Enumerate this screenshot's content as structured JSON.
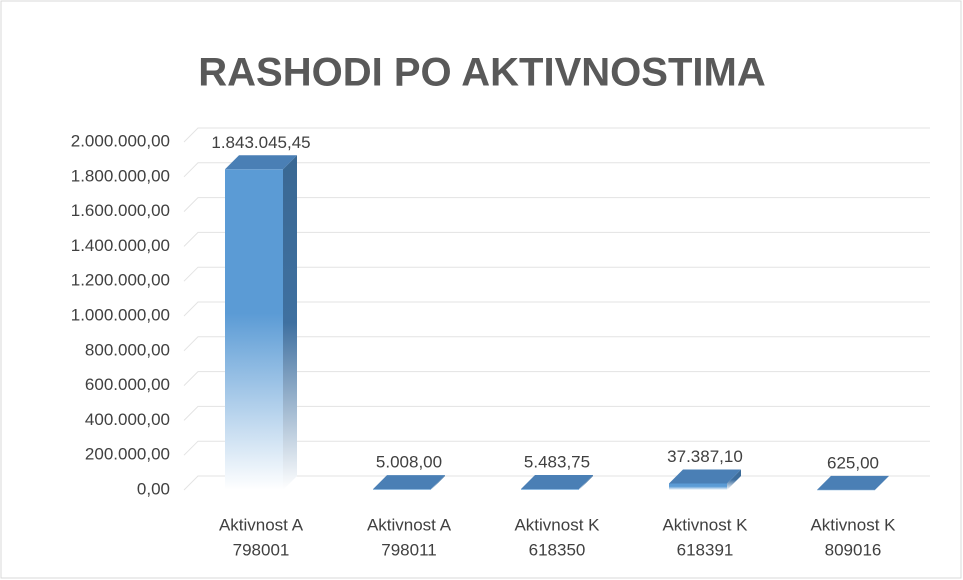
{
  "chart_data": {
    "type": "bar3d",
    "title": "RASHODI PO AKTIVNOSTIMA",
    "categories": [
      [
        "Aktivnost A",
        "798001"
      ],
      [
        "Aktivnost A",
        "798011"
      ],
      [
        "Aktivnost K",
        "618350"
      ],
      [
        "Aktivnost K",
        "618391"
      ],
      [
        "Aktivnost K",
        "809016"
      ]
    ],
    "values": [
      1843045.45,
      5008,
      5483.75,
      37387.1,
      625
    ],
    "value_labels": [
      "1.843.045,45",
      "5.008,00",
      "5.483,75",
      "37.387,10",
      "625,00"
    ],
    "color": "#5b9bd5",
    "ylim": [
      0,
      2000000
    ],
    "yticks": [
      {
        "value": 0,
        "label": "0,00"
      },
      {
        "value": 200000,
        "label": "200.000,00"
      },
      {
        "value": 400000,
        "label": "400.000,00"
      },
      {
        "value": 600000,
        "label": "600.000,00"
      },
      {
        "value": 800000,
        "label": "800.000,00"
      },
      {
        "value": 1000000,
        "label": "1.000.000,00"
      },
      {
        "value": 1200000,
        "label": "1.200.000,00"
      },
      {
        "value": 1400000,
        "label": "1.400.000,00"
      },
      {
        "value": 1600000,
        "label": "1.600.000,00"
      },
      {
        "value": 1800000,
        "label": "1.800.000,00"
      },
      {
        "value": 2000000,
        "label": "2.000.000,00"
      }
    ],
    "grid": true
  }
}
